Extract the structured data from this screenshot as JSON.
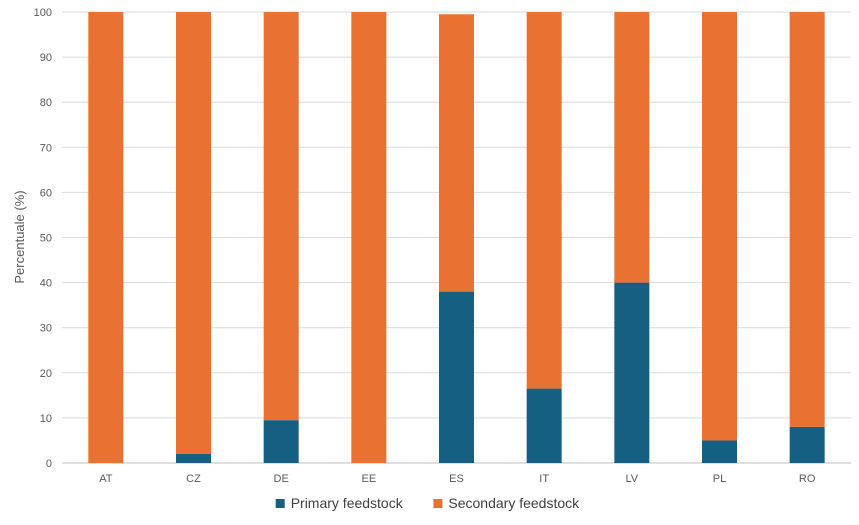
{
  "chart_data": {
    "type": "bar",
    "stacked": true,
    "title": "",
    "xlabel": "",
    "ylabel": "Percentuale (%)",
    "ylim": [
      0,
      100
    ],
    "yticks": [
      0,
      10,
      20,
      30,
      40,
      50,
      60,
      70,
      80,
      90,
      100
    ],
    "grid": true,
    "legend_position": "bottom",
    "categories": [
      "AT",
      "CZ",
      "DE",
      "EE",
      "ES",
      "IT",
      "LV",
      "PL",
      "RO"
    ],
    "series": [
      {
        "name": "Primary feedstock",
        "color": "#156082",
        "values": [
          0,
          2,
          9.5,
          0,
          38,
          16.5,
          40,
          5,
          8
        ]
      },
      {
        "name": "Secondary feedstock",
        "color": "#E97132",
        "values": [
          100,
          98,
          90.5,
          100,
          61.5,
          83.5,
          60,
          95,
          92
        ]
      }
    ]
  }
}
